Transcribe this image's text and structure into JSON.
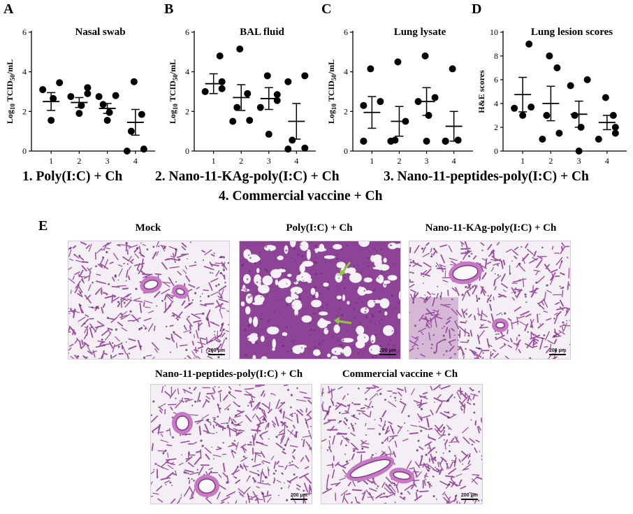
{
  "panel_letters": {
    "A": "A",
    "B": "B",
    "C": "C",
    "D": "D",
    "E": "E"
  },
  "legend": {
    "line1": {
      "item1": "1. Poly(I:C) + Ch",
      "item2": "2. Nano-11-KAg-poly(I:C) + Ch",
      "item3": "3. Nano-11-peptides-poly(I:C)  + Ch"
    },
    "line2": "4. Commercial vaccine + Ch"
  },
  "chart_data": [
    {
      "type": "scatter",
      "title": "Nasal swab",
      "ylabel": "Log10 TCID50/mL",
      "ylabel_parts": {
        "pre": "Log",
        "sub1": "10",
        "mid": " TCID",
        "sub2": "50",
        "post": "/mL"
      },
      "categories": [
        "1",
        "2",
        "3",
        "4"
      ],
      "ylim": [
        0,
        6
      ],
      "yticks": [
        0,
        2,
        4,
        6
      ],
      "points": [
        [
          1.55,
          2.65,
          3.1,
          3.45
        ],
        [
          1.9,
          2.3,
          2.75,
          2.9,
          3.2
        ],
        [
          1.55,
          1.95,
          2.35,
          2.75,
          2.8
        ],
        [
          0,
          0.1,
          1.0,
          1.85,
          3.5
        ]
      ],
      "mean": [
        2.5,
        2.45,
        2.15,
        1.45
      ],
      "error": [
        0.45,
        0.25,
        0.25,
        0.65
      ]
    },
    {
      "type": "scatter",
      "title": "BAL fluid",
      "ylabel": "Log10 TCID50/mL",
      "ylabel_parts": {
        "pre": "Log",
        "sub1": "10",
        "mid": " TCID",
        "sub2": "50",
        "post": "/mL"
      },
      "categories": [
        "1",
        "2",
        "3",
        "4"
      ],
      "ylim": [
        0,
        6
      ],
      "yticks": [
        0,
        2,
        4,
        6
      ],
      "points": [
        [
          3.0,
          3.15,
          3.5,
          4.8
        ],
        [
          1.5,
          1.55,
          2.2,
          2.9,
          5.15
        ],
        [
          0.85,
          2.2,
          2.55,
          2.85,
          3.8
        ],
        [
          0.1,
          0.15,
          0.55,
          3.5,
          3.8
        ]
      ],
      "mean": [
        3.4,
        2.7,
        2.65,
        1.5
      ],
      "error": [
        0.5,
        0.65,
        0.55,
        0.9
      ]
    },
    {
      "type": "scatter",
      "title": "Lung lysate",
      "ylabel": "Log10 TCID50/mL",
      "ylabel_parts": {
        "pre": "Log",
        "sub1": "10",
        "mid": " TCID",
        "sub2": "50",
        "post": "/mL"
      },
      "categories": [
        "1",
        "2",
        "3",
        "4"
      ],
      "ylim": [
        0,
        6
      ],
      "yticks": [
        0,
        2,
        4,
        6
      ],
      "points": [
        [
          0.5,
          0.5,
          2.3,
          2.5,
          4.15
        ],
        [
          0.5,
          0.5,
          0.55,
          1.5,
          4.5
        ],
        [
          0.5,
          1.8,
          2.5,
          2.7,
          4.8
        ],
        [
          0.5,
          0.5,
          0.5,
          0.55,
          4.15
        ]
      ],
      "mean": [
        1.95,
        1.5,
        2.5,
        1.25
      ],
      "error": [
        0.8,
        0.75,
        0.7,
        0.75
      ]
    },
    {
      "type": "scatter",
      "title": "Lung lesion scores",
      "ylabel": "H&E scores",
      "categories": [
        "1",
        "2",
        "3",
        "4"
      ],
      "ylim": [
        0,
        10
      ],
      "yticks": [
        0,
        2,
        4,
        6,
        8,
        10
      ],
      "points": [
        [
          3.0,
          3.6,
          3.7,
          9.0
        ],
        [
          1.0,
          1.5,
          3.0,
          7.0,
          8.0
        ],
        [
          0.0,
          2.0,
          3.0,
          5.5,
          6.0
        ],
        [
          1.0,
          1.5,
          2.0,
          3.0,
          4.5
        ]
      ],
      "mean": [
        4.75,
        4.0,
        3.1,
        2.4
      ],
      "error": [
        1.45,
        1.45,
        1.1,
        0.6
      ]
    }
  ],
  "histology": {
    "panels": [
      {
        "title": "Mock",
        "scale": "200 μm",
        "variant": "mock"
      },
      {
        "title": "Poly(I:C) + Ch",
        "scale": "200 μm",
        "variant": "dense"
      },
      {
        "title": "Nano-11-KAg-poly(I:C) + Ch",
        "scale": "200 μm",
        "variant": "vessel"
      },
      {
        "title": "Nano-11-peptides-poly(I:C) + Ch",
        "scale": "200 μm",
        "variant": "airways"
      },
      {
        "title": "Commercial vaccine + Ch",
        "scale": "200 μm",
        "variant": "bronchiole"
      }
    ],
    "colors": {
      "tissue": "#9a4f9f",
      "tissue_dense": "#8e4496",
      "background": "#f4eef5",
      "arrow": "#8dc63f"
    }
  }
}
